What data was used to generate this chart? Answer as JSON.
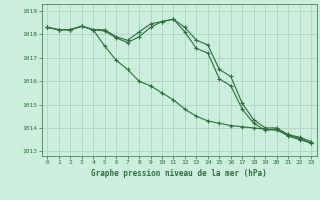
{
  "title": "Graphe pression niveau de la mer (hPa)",
  "background_color": "#cceedd",
  "grid_color": "#aaccbb",
  "line_color": "#2d6e3a",
  "x_labels": [
    "0",
    "1",
    "2",
    "3",
    "4",
    "5",
    "6",
    "7",
    "8",
    "9",
    "10",
    "11",
    "12",
    "13",
    "14",
    "15",
    "16",
    "17",
    "18",
    "19",
    "20",
    "21",
    "22",
    "23"
  ],
  "ylim": [
    1012.8,
    1019.3
  ],
  "yticks": [
    1013,
    1014,
    1015,
    1016,
    1017,
    1018,
    1019
  ],
  "line1": [
    1018.3,
    1018.2,
    1018.2,
    1018.35,
    1018.2,
    1018.2,
    1017.9,
    1017.75,
    1018.1,
    1018.45,
    1018.55,
    1018.65,
    1018.3,
    1017.75,
    1017.55,
    1016.5,
    1016.2,
    1015.05,
    1014.35,
    1014.0,
    1014.0,
    1013.72,
    1013.6,
    1013.42
  ],
  "line2": [
    1018.3,
    1018.2,
    1018.2,
    1018.35,
    1018.2,
    1018.15,
    1017.85,
    1017.65,
    1017.9,
    1018.3,
    1018.55,
    1018.65,
    1018.1,
    1017.4,
    1017.2,
    1016.1,
    1015.8,
    1014.8,
    1014.2,
    1013.9,
    1013.95,
    1013.65,
    1013.5,
    1013.35
  ],
  "line3": [
    1018.3,
    1018.2,
    1018.2,
    1018.35,
    1018.2,
    1017.5,
    1016.9,
    1016.5,
    1016.0,
    1015.8,
    1015.5,
    1015.2,
    1014.8,
    1014.5,
    1014.3,
    1014.2,
    1014.1,
    1014.05,
    1014.0,
    1013.95,
    1013.9,
    1013.7,
    1013.55,
    1013.35
  ],
  "figsize": [
    3.2,
    2.0
  ],
  "dpi": 100
}
